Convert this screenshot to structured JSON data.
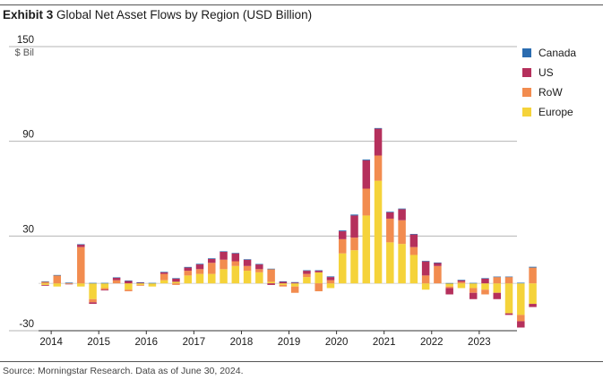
{
  "header": {
    "exhibit": "Exhibit 3",
    "title": "Global Net Asset Flows by Region (USD Billion)"
  },
  "footer": {
    "source": "Source: Morningstar Research. Data as of June 30, 2024."
  },
  "legend": [
    {
      "name": "Canada",
      "color": "#2b6cb0"
    },
    {
      "name": "US",
      "color": "#b5305c"
    },
    {
      "name": "RoW",
      "color": "#f28c4f"
    },
    {
      "name": "Europe",
      "color": "#f5d33a"
    }
  ],
  "chart_data": {
    "type": "bar",
    "stacked": true,
    "title": "Global Net Asset Flows by Region (USD Billion)",
    "ylabel": "$ Bil",
    "ylim": [
      -30,
      150
    ],
    "y_ticks": [
      150,
      90,
      30,
      -30
    ],
    "x_tick_labels": [
      "2014",
      "2015",
      "2016",
      "2017",
      "2018",
      "2019",
      "2020",
      "2021",
      "2022",
      "2023"
    ],
    "legend_position": "right",
    "categories": [
      "2014Q1",
      "2014Q2",
      "2014Q3",
      "2014Q4",
      "2015Q1",
      "2015Q2",
      "2015Q3",
      "2015Q4",
      "2016Q1",
      "2016Q2",
      "2016Q3",
      "2016Q4",
      "2017Q1",
      "2017Q2",
      "2017Q3",
      "2017Q4",
      "2018Q1",
      "2018Q2",
      "2018Q3",
      "2018Q4",
      "2019Q1",
      "2019Q2",
      "2019Q3",
      "2019Q4",
      "2020Q1",
      "2020Q2",
      "2020Q3",
      "2020Q4",
      "2021Q1",
      "2021Q2",
      "2021Q3",
      "2021Q4",
      "2022Q1",
      "2022Q2",
      "2022Q3",
      "2022Q4",
      "2023Q1",
      "2023Q2",
      "2023Q3",
      "2023Q4",
      "2024Q1",
      "2024Q2"
    ],
    "series": [
      {
        "name": "Canada",
        "values": [
          0.3,
          0.3,
          0.2,
          0.3,
          0.3,
          0.3,
          0.3,
          0.3,
          0.2,
          0.3,
          0.3,
          0.3,
          0.4,
          0.4,
          0.4,
          0.3,
          0.3,
          0.3,
          0.3,
          0.3,
          0.3,
          0.3,
          0.3,
          0.3,
          0.4,
          0.5,
          0.6,
          0.5,
          0.4,
          0.4,
          0.4,
          0.3,
          0.2,
          0.2,
          0.2,
          0.2,
          0.3,
          0.3,
          0.3,
          0.3,
          0.4,
          0.5
        ]
      },
      {
        "name": "US",
        "values": [
          -0.5,
          0,
          -0.3,
          1.5,
          -1,
          -0.5,
          1.5,
          1.5,
          0.5,
          0,
          1,
          2,
          2,
          3,
          2.5,
          5,
          5,
          4,
          3,
          -1,
          1,
          0.5,
          2,
          1,
          2,
          5,
          14,
          18,
          17,
          4,
          7,
          8,
          9,
          2,
          -4,
          1,
          -4,
          3,
          -4,
          -1,
          -4,
          -2
        ]
      },
      {
        "name": "RoW",
        "values": [
          1,
          5,
          0.3,
          23,
          -2,
          -1,
          2,
          -1,
          -0.5,
          0,
          4,
          -1,
          3,
          3,
          7,
          6,
          3,
          3,
          2,
          8,
          -1,
          -4,
          2,
          -5,
          2,
          9,
          8,
          17,
          16,
          15,
          15,
          5,
          5,
          11,
          -1,
          1,
          -3,
          -3,
          4,
          4,
          -4,
          10
        ]
      },
      {
        "name": "Europe",
        "values": [
          -1,
          -2,
          -0.3,
          -2,
          -10,
          -3,
          0,
          -4,
          -1,
          -2,
          2,
          1,
          5,
          6,
          6,
          9,
          11,
          8,
          7,
          1,
          -1,
          -2,
          4,
          7,
          -3,
          19,
          21,
          43,
          65,
          26,
          25,
          18,
          -4,
          0,
          -2,
          -3,
          -3,
          -4,
          -6,
          -19,
          -20,
          -13
        ]
      }
    ]
  }
}
